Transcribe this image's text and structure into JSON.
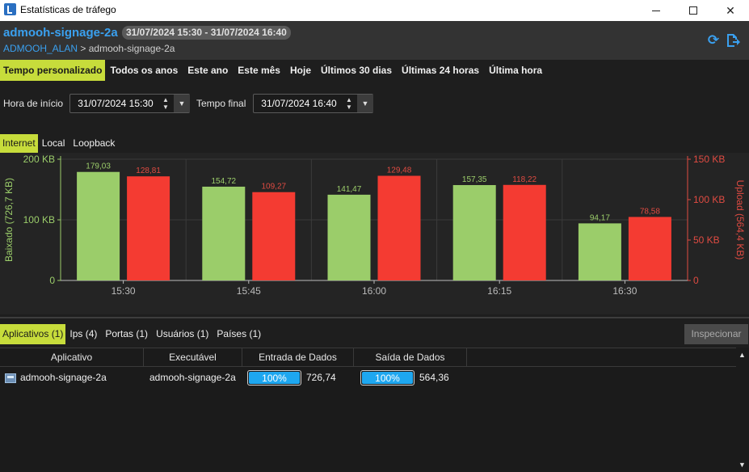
{
  "window": {
    "title": "Estatísticas de tráfego",
    "minimize": "—",
    "maximize": "☐",
    "close": "✕"
  },
  "header": {
    "app_name": "admooh-signage-2a",
    "range": "31/07/2024 15:30 - 31/07/2024 16:40",
    "breadcrumb_link": "ADMOOH_ALAN",
    "breadcrumb_sep": " > ",
    "breadcrumb_current": "admooh-signage-2a",
    "refresh_icon": "refresh-icon",
    "export_icon": "export-icon"
  },
  "period_tabs": [
    "Tempo personalizado",
    "Todos os anos",
    "Este ano",
    "Este mês",
    "Hoje",
    "Últimos 30 dias",
    "Últimas 24 horas",
    "Última hora"
  ],
  "time": {
    "start_label": "Hora de início",
    "start_value": "31/07/2024 15:30",
    "end_label": "Tempo final",
    "end_value": "31/07/2024 16:40"
  },
  "network_tabs": [
    "Internet",
    "Local",
    "Loopback"
  ],
  "chart_data": {
    "type": "bar",
    "categories": [
      "15:30",
      "15:45",
      "16:00",
      "16:15",
      "16:30"
    ],
    "series": [
      {
        "name": "Baixado",
        "axis": "left",
        "color": "#9bcd6a",
        "label_color": "#9bcd6a",
        "values": [
          179.03,
          154.72,
          141.47,
          157.35,
          94.17
        ],
        "labels": [
          "179,03",
          "154,72",
          "141,47",
          "157,35",
          "94,17"
        ]
      },
      {
        "name": "Upload",
        "axis": "right",
        "color": "#f43b32",
        "label_color": "#e04b42",
        "values": [
          128.81,
          109.27,
          129.48,
          118.22,
          78.58
        ],
        "labels": [
          "128,81",
          "109,27",
          "129,48",
          "118,22",
          "78,58"
        ]
      }
    ],
    "ylabel_left": "Baixado (726,7 KB)",
    "ylabel_right": "Upload (564,4 KB)",
    "ylim_left": [
      0,
      200
    ],
    "ylim_right": [
      0,
      150
    ],
    "yticks_left": [
      {
        "v": 0,
        "label": "0"
      },
      {
        "v": 100,
        "label": "100 KB"
      },
      {
        "v": 200,
        "label": "200 KB"
      }
    ],
    "yticks_right": [
      {
        "v": 0,
        "label": "0"
      },
      {
        "v": 50,
        "label": "50 KB"
      },
      {
        "v": 100,
        "label": "100 KB"
      },
      {
        "v": 150,
        "label": "150 KB"
      }
    ],
    "grid": true,
    "left_axis_color": "#9bcd6a",
    "right_axis_color": "#e04b42"
  },
  "bottom_tabs": [
    "Aplicativos (1)",
    "Ips (4)",
    "Portas (1)",
    "Usuários (1)",
    "Países (1)"
  ],
  "inspect_button": "Inspecionar",
  "table": {
    "columns": [
      "Aplicativo",
      "Executável",
      "Entrada de Dados",
      "Saída de Dados"
    ],
    "rows": [
      {
        "app": "admooh-signage-2a",
        "exe": "admooh-signage-2a",
        "in_pct": "100%",
        "in_fraction": 1.0,
        "in_value": "726,74",
        "out_pct": "100%",
        "out_fraction": 1.0,
        "out_value": "564,36"
      }
    ]
  },
  "scroll": {
    "up": "▲",
    "down": "▼"
  }
}
